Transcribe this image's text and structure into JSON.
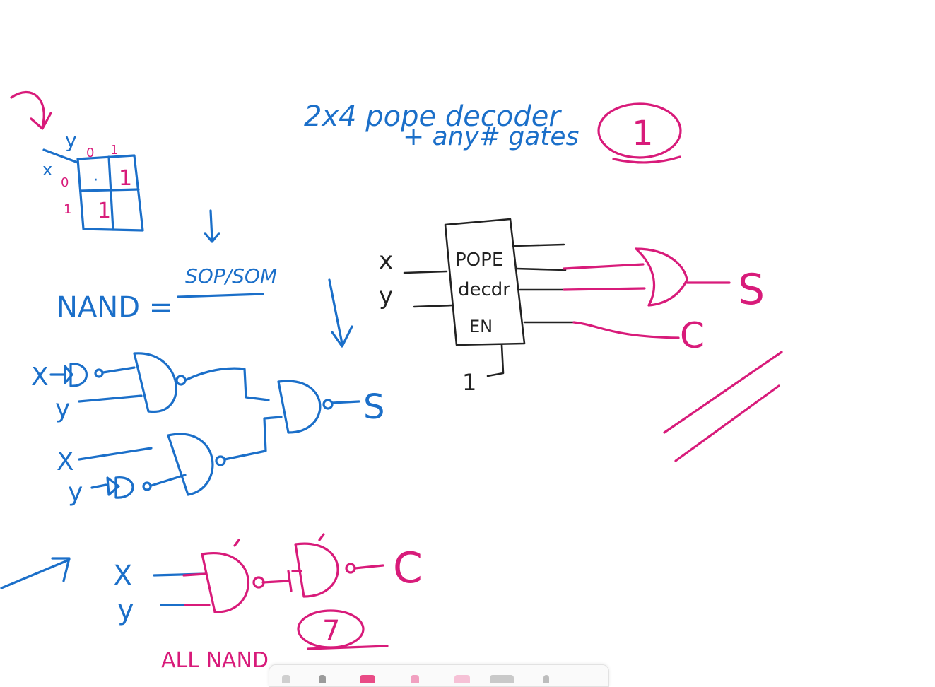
{
  "notes": {
    "title_line1": "2x4 pope decoder",
    "title_line2": "+ any# gates",
    "answer_top": "1",
    "kmap": {
      "col_var": "y",
      "row_var": "x",
      "col_labels": [
        "0",
        "1"
      ],
      "row_labels": [
        "0",
        "1"
      ],
      "cells": [
        [
          "·",
          "1"
        ],
        [
          "1",
          ""
        ]
      ]
    },
    "nand_eq_lhs": "NAND =",
    "nand_eq_rhs": "SOP/SOM",
    "circuit1_inputs": [
      "X",
      "y",
      "X",
      "y"
    ],
    "circuit1_output": "S",
    "decoder": {
      "box_line1": "POPE",
      "box_line2": "decdr",
      "box_line3": "EN",
      "in_x": "x",
      "in_y": "y",
      "enable_value": "1",
      "out_s": "S",
      "out_c": "C"
    },
    "circuit2_inputs": [
      "X",
      "y"
    ],
    "circuit2_output": "C",
    "all_nand": "ALL NAND",
    "answer_bottom": "7"
  },
  "colors": {
    "blue_ink": "#1b6fc9",
    "pink_ink": "#d81b7a",
    "dark_ink": "#222222"
  }
}
